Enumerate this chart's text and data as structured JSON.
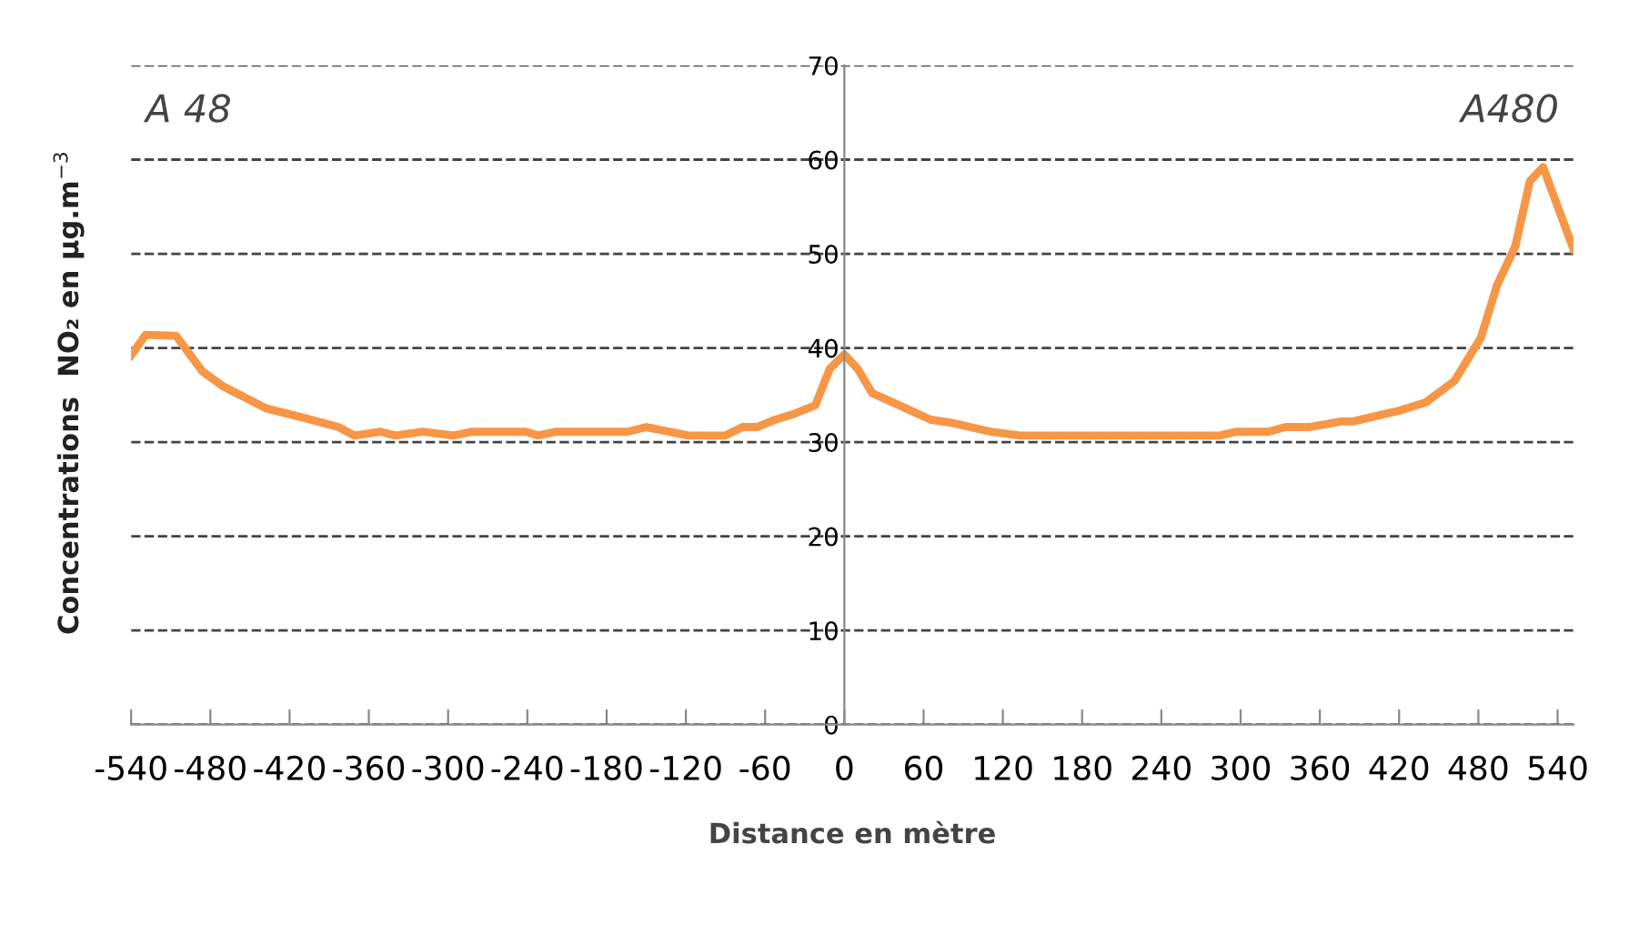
{
  "chart_data": {
    "type": "line",
    "xlabel": "Distance en mètre",
    "ylabel": "Concentrations  NO₂ en µg.m$^{−3}$",
    "x": [
      -540,
      -529,
      -506,
      -486,
      -470,
      -438,
      -410,
      -383,
      -371,
      -351,
      -340,
      -319,
      -296,
      -282,
      -241,
      -232,
      -218,
      -164,
      -150,
      -118,
      -90,
      -77,
      -66,
      -54,
      -40,
      -22,
      -11,
      0,
      10,
      21,
      37,
      65,
      83,
      111,
      133,
      284,
      297,
      321,
      334,
      352,
      376,
      385,
      419,
      440,
      462,
      482,
      494,
      508,
      519,
      529,
      552
    ],
    "series": [
      {
        "color": "#f79646",
        "values": [
          39.2,
          41.4,
          41.3,
          37.5,
          35.9,
          33.6,
          32.6,
          31.6,
          30.7,
          31.1,
          30.7,
          31.1,
          30.7,
          31.1,
          31.1,
          30.7,
          31.1,
          31.1,
          31.6,
          30.7,
          30.7,
          31.6,
          31.6,
          32.3,
          32.9,
          33.9,
          37.8,
          39.3,
          37.8,
          35.2,
          34.2,
          32.4,
          32.0,
          31.1,
          30.7,
          30.7,
          31.1,
          31.1,
          31.6,
          31.6,
          32.2,
          32.2,
          33.3,
          34.2,
          36.5,
          41.1,
          46.6,
          50.8,
          57.7,
          59.2,
          50.5
        ]
      }
    ],
    "xlim": [
      -540,
      552
    ],
    "xticks": [
      -540,
      -480,
      -420,
      -360,
      -300,
      -240,
      -180,
      -120,
      -60,
      0,
      60,
      120,
      180,
      240,
      300,
      360,
      420,
      480,
      540
    ],
    "ylim": [
      0,
      70
    ],
    "yticks": [
      0,
      10,
      20,
      30,
      40,
      50,
      60,
      70
    ],
    "grid": "y",
    "line_style": "solid",
    "marker": "none",
    "annotations": [
      "A 48",
      "A480"
    ]
  }
}
